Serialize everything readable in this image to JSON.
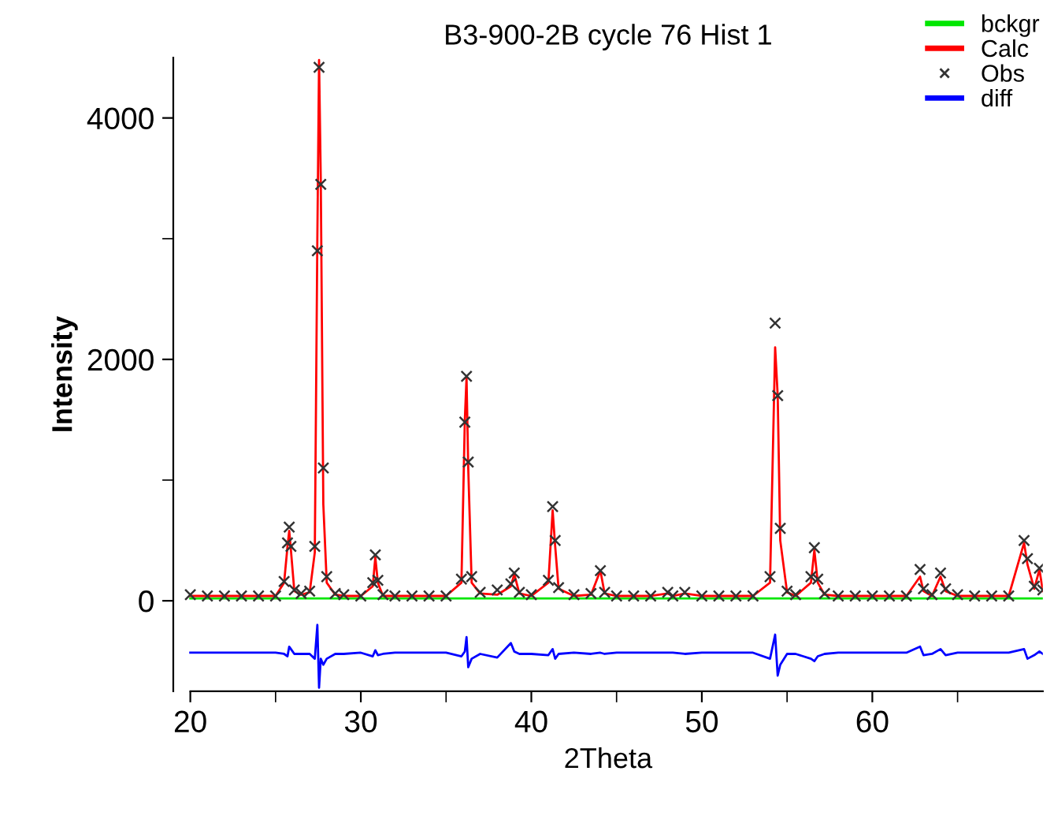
{
  "chart_data": {
    "type": "line",
    "title": "B3-900-2B cycle 76 Hist 1",
    "xlabel": "2Theta",
    "ylabel": "Intensity",
    "xlim": [
      19,
      70
    ],
    "ylim": [
      -750,
      4500
    ],
    "xticks": [
      20,
      {
        "value": 25,
        "label": null
      },
      30,
      {
        "value": 35,
        "label": null
      },
      40,
      {
        "value": 45,
        "label": null
      },
      50,
      {
        "value": 55,
        "label": null
      },
      60,
      {
        "value": 65,
        "label": null
      }
    ],
    "yticks": [
      0,
      {
        "value": 1000,
        "label": null
      },
      2000,
      {
        "value": 3000,
        "label": null
      },
      4000
    ],
    "legend": "top right",
    "x": [
      20,
      21,
      22,
      23,
      24,
      25,
      25.5,
      25.7,
      25.8,
      25.9,
      26.1,
      26.5,
      27.0,
      27.3,
      27.45,
      27.55,
      27.65,
      27.8,
      28.0,
      28.5,
      29,
      30,
      30.7,
      30.85,
      31.0,
      31.3,
      32,
      33,
      34,
      35,
      35.9,
      36.1,
      36.2,
      36.3,
      36.5,
      37,
      38,
      38.8,
      39.0,
      39.3,
      40,
      41.0,
      41.25,
      41.4,
      41.6,
      42.5,
      43.5,
      44.05,
      44.3,
      45,
      46,
      47,
      48,
      48.3,
      49,
      50,
      51,
      52,
      53,
      54.0,
      54.3,
      54.45,
      54.6,
      55,
      55.5,
      56.4,
      56.6,
      56.8,
      57.2,
      58,
      59,
      60,
      61,
      62,
      62.8,
      63.0,
      63.5,
      64.0,
      64.3,
      65,
      66,
      67,
      68,
      68.9,
      69.1,
      69.5,
      69.8,
      70
    ],
    "series": [
      {
        "name": "bckgr",
        "color": "#00e600",
        "x": [
          20,
          70
        ],
        "values": [
          20,
          20
        ]
      },
      {
        "name": "Calc",
        "color": "#ff0000",
        "values": [
          40,
          40,
          40,
          40,
          40,
          40,
          150,
          450,
          580,
          420,
          80,
          50,
          70,
          400,
          3000,
          4480,
          3500,
          800,
          150,
          50,
          40,
          40,
          120,
          360,
          150,
          40,
          40,
          40,
          40,
          40,
          150,
          1500,
          1850,
          1100,
          150,
          60,
          50,
          120,
          220,
          60,
          40,
          150,
          750,
          450,
          100,
          40,
          50,
          250,
          60,
          40,
          40,
          40,
          60,
          40,
          60,
          40,
          40,
          40,
          40,
          150,
          2100,
          1700,
          500,
          70,
          40,
          150,
          420,
          150,
          50,
          40,
          40,
          40,
          40,
          40,
          200,
          80,
          40,
          200,
          80,
          40,
          40,
          40,
          40,
          480,
          300,
          100,
          260,
          80
        ]
      },
      {
        "name": "Obs",
        "type": "scatter",
        "marker": "cross",
        "color": "#333333",
        "values": [
          50,
          40,
          40,
          40,
          40,
          40,
          160,
          480,
          610,
          450,
          90,
          60,
          80,
          450,
          2900,
          4420,
          3450,
          1100,
          200,
          60,
          50,
          40,
          150,
          380,
          170,
          50,
          40,
          40,
          40,
          40,
          180,
          1480,
          1860,
          1150,
          200,
          70,
          90,
          140,
          230,
          70,
          50,
          170,
          780,
          500,
          110,
          50,
          60,
          250,
          70,
          40,
          40,
          40,
          70,
          40,
          70,
          40,
          40,
          40,
          40,
          200,
          2300,
          1700,
          600,
          80,
          50,
          200,
          440,
          180,
          60,
          40,
          40,
          40,
          40,
          40,
          260,
          100,
          50,
          230,
          100,
          50,
          40,
          40,
          40,
          500,
          350,
          120,
          270,
          90
        ]
      },
      {
        "name": "diff",
        "color": "#0000ff",
        "values": [
          -430,
          -430,
          -430,
          -430,
          -430,
          -430,
          -440,
          -460,
          -380,
          -400,
          -440,
          -440,
          -440,
          -480,
          -200,
          -720,
          -480,
          -530,
          -480,
          -440,
          -440,
          -430,
          -460,
          -410,
          -450,
          -440,
          -430,
          -430,
          -430,
          -430,
          -460,
          -420,
          -300,
          -550,
          -480,
          -440,
          -470,
          -350,
          -420,
          -440,
          -440,
          -450,
          -400,
          -480,
          -440,
          -430,
          -440,
          -430,
          -440,
          -430,
          -430,
          -430,
          -430,
          -430,
          -440,
          -430,
          -430,
          -430,
          -430,
          -480,
          -280,
          -620,
          -530,
          -440,
          -440,
          -480,
          -500,
          -460,
          -440,
          -430,
          -430,
          -430,
          -430,
          -430,
          -380,
          -450,
          -440,
          -400,
          -450,
          -430,
          -430,
          -430,
          -430,
          -400,
          -480,
          -450,
          -420,
          -440
        ]
      }
    ]
  }
}
